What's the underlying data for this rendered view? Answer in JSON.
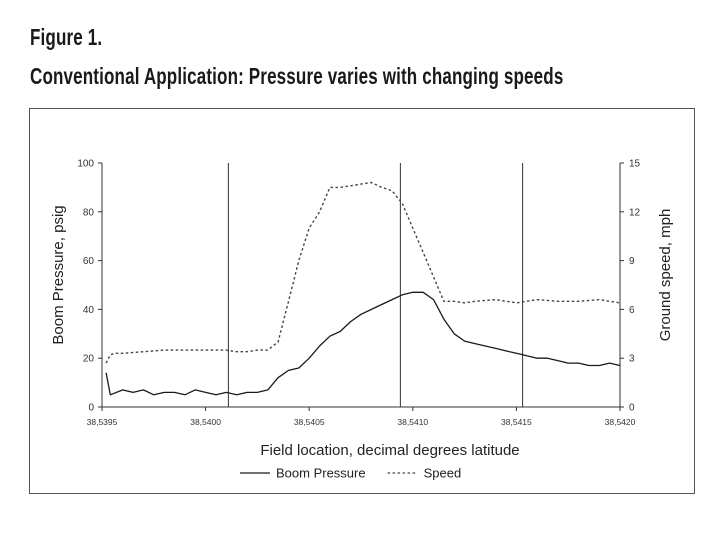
{
  "figure": {
    "title": "Figure 1.",
    "subtitle": "Conventional Application: Pressure varies with changing speeds"
  },
  "chart_data": {
    "type": "line",
    "title": "Conventional Application: Pressure varies with changing speeds",
    "xlabel": "Field location, decimal degrees  latitude",
    "ylabel_left": "Boom Pressure, psig",
    "ylabel_right": "Ground speed, mph",
    "xlim": [
      38.5395,
      38.542
    ],
    "ylim_left": [
      0,
      100
    ],
    "ylim_right": [
      0,
      15
    ],
    "x_ticks": [
      38.5395,
      38.54,
      38.5405,
      38.541,
      38.5415,
      38.542
    ],
    "x_tick_labels": [
      "38,5395",
      "38,5400",
      "38,5405",
      "38,5410",
      "38,5415",
      "38,5420"
    ],
    "y_left_ticks": [
      0,
      20,
      40,
      60,
      80,
      100
    ],
    "y_left_tick_labels": [
      "0",
      "20",
      "40",
      "60",
      "80",
      "100"
    ],
    "y_right_ticks": [
      0,
      3,
      6,
      9,
      12,
      15
    ],
    "y_right_tick_labels": [
      "0",
      "3",
      "6",
      "9",
      "12",
      "15"
    ],
    "vertical_gridlines_at": [
      38.54011,
      38.54094,
      38.54153
    ],
    "legend": {
      "placement": "bottom-center"
    },
    "series": [
      {
        "name": "Boom Pressure",
        "axis": "left",
        "style": "solid",
        "color": "#1a1a1a",
        "x": [
          38.53952,
          38.53954,
          38.5396,
          38.53965,
          38.5397,
          38.53975,
          38.5398,
          38.53985,
          38.5399,
          38.53995,
          38.54,
          38.54005,
          38.5401,
          38.54015,
          38.5402,
          38.54025,
          38.5403,
          38.54035,
          38.5404,
          38.54045,
          38.5405,
          38.54055,
          38.5406,
          38.54065,
          38.5407,
          38.54075,
          38.5408,
          38.54085,
          38.5409,
          38.54095,
          38.541,
          38.54105,
          38.5411,
          38.54115,
          38.5412,
          38.54125,
          38.5413,
          38.54135,
          38.5414,
          38.54145,
          38.5415,
          38.54155,
          38.5416,
          38.54165,
          38.5417,
          38.54175,
          38.5418,
          38.54185,
          38.5419,
          38.54195,
          38.542
        ],
        "values": [
          14,
          5,
          7,
          6,
          7,
          5,
          6,
          6,
          5,
          7,
          6,
          5,
          6,
          5,
          6,
          6,
          7,
          12,
          15,
          16,
          20,
          25,
          29,
          31,
          35,
          38,
          40,
          42,
          44,
          46,
          47,
          47,
          44,
          36,
          30,
          27,
          26,
          25,
          24,
          23,
          22,
          21,
          20,
          20,
          19,
          18,
          18,
          17,
          17,
          18,
          17
        ]
      },
      {
        "name": "Speed",
        "axis": "right",
        "style": "dotted",
        "color": "#444444",
        "x": [
          38.53952,
          38.53954,
          38.53956,
          38.5396,
          38.5397,
          38.5398,
          38.5399,
          38.54,
          38.5401,
          38.54015,
          38.5402,
          38.54025,
          38.5403,
          38.54035,
          38.5404,
          38.54045,
          38.5405,
          38.54055,
          38.5406,
          38.54065,
          38.5407,
          38.54075,
          38.5408,
          38.54085,
          38.5409,
          38.54095,
          38.541,
          38.54105,
          38.5411,
          38.54115,
          38.5412,
          38.54125,
          38.5413,
          38.5414,
          38.5415,
          38.5416,
          38.5417,
          38.5418,
          38.5419,
          38.542
        ],
        "values": [
          2.7,
          3.2,
          3.3,
          3.3,
          3.4,
          3.5,
          3.5,
          3.5,
          3.5,
          3.4,
          3.4,
          3.5,
          3.5,
          4.0,
          6.5,
          9.0,
          11.0,
          12.0,
          13.5,
          13.5,
          13.6,
          13.7,
          13.8,
          13.5,
          13.3,
          12.5,
          11.0,
          9.5,
          8.0,
          6.5,
          6.5,
          6.4,
          6.5,
          6.6,
          6.4,
          6.6,
          6.5,
          6.5,
          6.6,
          6.4
        ]
      }
    ]
  }
}
